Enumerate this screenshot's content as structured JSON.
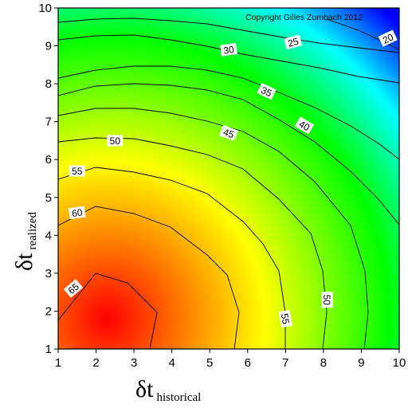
{
  "chart_data": {
    "type": "heatmap",
    "title": "",
    "copyright": "Copyright Gilles Zumbach 2012",
    "xlabel": {
      "main": "δt",
      "sub": "historical"
    },
    "ylabel": {
      "main": "δt",
      "sub": "realized"
    },
    "xlim": [
      1,
      10
    ],
    "ylim": [
      1,
      10
    ],
    "xticks": [
      "1",
      "2",
      "3",
      "4",
      "5",
      "6",
      "7",
      "8",
      "9",
      "10"
    ],
    "yticks": [
      "1",
      "2",
      "3",
      "4",
      "5",
      "6",
      "7",
      "8",
      "9",
      "10"
    ],
    "colormap": [
      "#ff0000",
      "#ffff00",
      "#00ff00",
      "#00ffff",
      "#0000ff"
    ],
    "peak": {
      "x": 2.3,
      "y": 1.8
    },
    "contour_levels": [
      20,
      25,
      30,
      35,
      40,
      45,
      50,
      55,
      60,
      65
    ],
    "contour_labels": [
      {
        "text": "20",
        "x": 9.7,
        "y": 9.2,
        "angle": -25
      },
      {
        "text": "25",
        "x": 7.2,
        "y": 9.1,
        "angle": -15
      },
      {
        "text": "30",
        "x": 5.5,
        "y": 8.9,
        "angle": -8
      },
      {
        "text": "35",
        "x": 6.5,
        "y": 7.8,
        "angle": 25
      },
      {
        "text": "40",
        "x": 7.5,
        "y": 6.9,
        "angle": 30
      },
      {
        "text": "45",
        "x": 5.5,
        "y": 6.7,
        "angle": 20
      },
      {
        "text": "50",
        "x": 2.5,
        "y": 6.5,
        "angle": 0
      },
      {
        "text": "55",
        "x": 1.5,
        "y": 5.7,
        "angle": 0
      },
      {
        "text": "60",
        "x": 1.5,
        "y": 4.6,
        "angle": -8
      },
      {
        "text": "65",
        "x": 1.4,
        "y": 2.6,
        "angle": -40
      },
      {
        "text": "55",
        "x": 7.0,
        "y": 1.8,
        "angle": 80
      },
      {
        "text": "50",
        "x": 8.1,
        "y": 2.3,
        "angle": 90
      }
    ]
  }
}
